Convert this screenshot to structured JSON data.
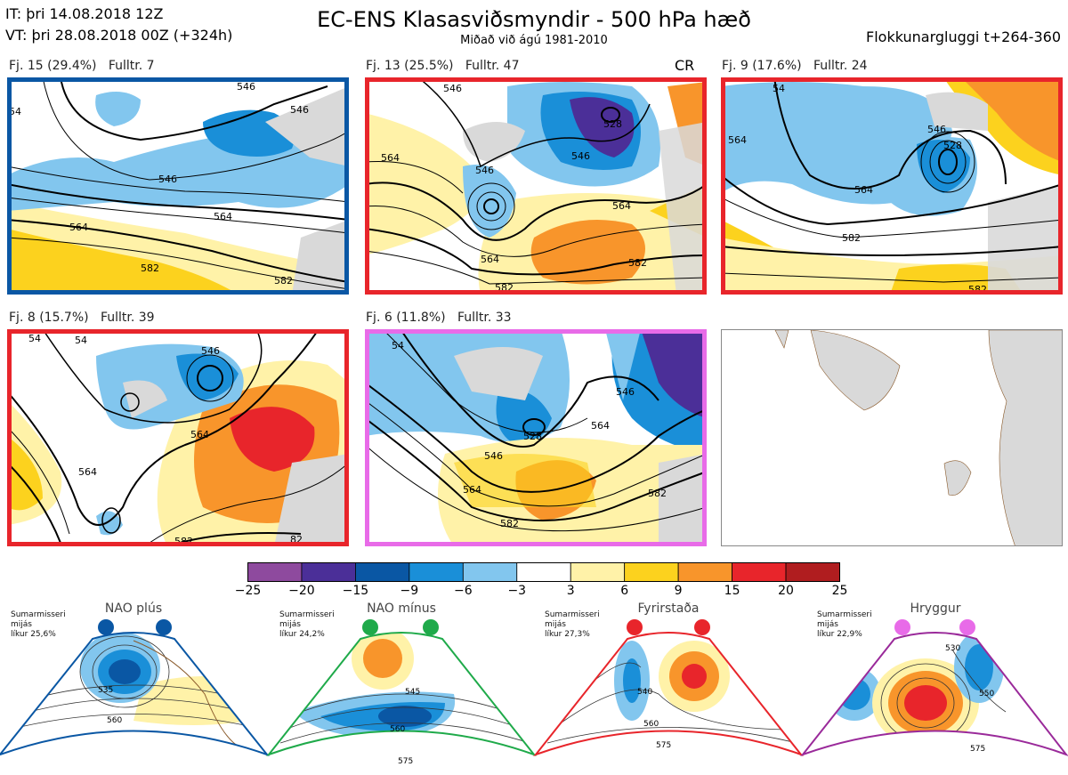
{
  "header": {
    "it_line": "IT: þri 14.08.2018 12Z",
    "vt_line": "VT: þri 28.08.2018 00Z  (+324h)",
    "title": "EC-ENS Klasasviðsmyndir - 500 hPa hæð",
    "subtitle": "Miðað við ágú 1981-2010",
    "window": "Flokkunargluggi t+264-360"
  },
  "panels": [
    {
      "label": "Fj. 15 (29.4%)   Fulltr. 7",
      "frame_color": "#0a57a4",
      "marker": "",
      "contours": [
        "546",
        "546",
        "546",
        "564",
        "564",
        "582",
        "582",
        "54"
      ]
    },
    {
      "label": "Fj. 13 (25.5%)   Fulltr. 47",
      "frame_color": "#e8252b",
      "marker": "CR",
      "contours": [
        "546",
        "528",
        "546",
        "564",
        "564",
        "564",
        "582",
        "582",
        "546"
      ]
    },
    {
      "label": "Fj. 9 (17.6%)   Fulltr. 24",
      "frame_color": "#e8252b",
      "marker": "",
      "contours": [
        "546",
        "528",
        "564",
        "564",
        "582",
        "582",
        "54"
      ]
    },
    {
      "label": "Fj. 8 (15.7%)   Fulltr. 39",
      "frame_color": "#e8252b",
      "marker": "",
      "contours": [
        "546",
        "564",
        "564",
        "582",
        "82",
        "54",
        "54"
      ]
    },
    {
      "label": "Fj. 6 (11.8%)   Fulltr. 33",
      "frame_color": "#e86be8",
      "marker": "",
      "contours": [
        "546",
        "528",
        "546",
        "564",
        "564",
        "582",
        "582",
        "54"
      ]
    }
  ],
  "colorbar": {
    "ticks": [
      "−25",
      "−20",
      "−15",
      "−9",
      "−6",
      "−3",
      "3",
      "6",
      "9",
      "15",
      "20",
      "25"
    ],
    "colors": [
      "#8e4a9e",
      "#4b2f98",
      "#0a57a4",
      "#1a8fd8",
      "#82c6ee",
      "#ffffff",
      "#fff2a8",
      "#fcd21e",
      "#f8952b",
      "#e8252b",
      "#b01d1f"
    ]
  },
  "regimes": [
    {
      "name": "NAO plús",
      "info": [
        "Sumarmisseri",
        "mijás",
        "líkur 25,6%"
      ],
      "color": "#0a57a4",
      "contours": [
        "535",
        "560"
      ]
    },
    {
      "name": "NAO mínus",
      "info": [
        "Sumarmisseri",
        "mijás",
        "líkur 24,2%"
      ],
      "color": "#1faa4a",
      "contours": [
        "545",
        "560",
        "575"
      ]
    },
    {
      "name": "Fyrirstaða",
      "info": [
        "Sumarmisseri",
        "mijás",
        "líkur 27,3%"
      ],
      "color": "#e8252b",
      "contours": [
        "540",
        "560",
        "575"
      ]
    },
    {
      "name": "Hryggur",
      "info": [
        "Sumarmisseri",
        "mijás",
        "líkur 22,9%"
      ],
      "color": "#9a2a9a",
      "contours": [
        "530",
        "550",
        "575"
      ]
    }
  ],
  "palette": {
    "land": "#d9d9d9",
    "coast": "#8a5a2b",
    "grid": "#777777"
  }
}
